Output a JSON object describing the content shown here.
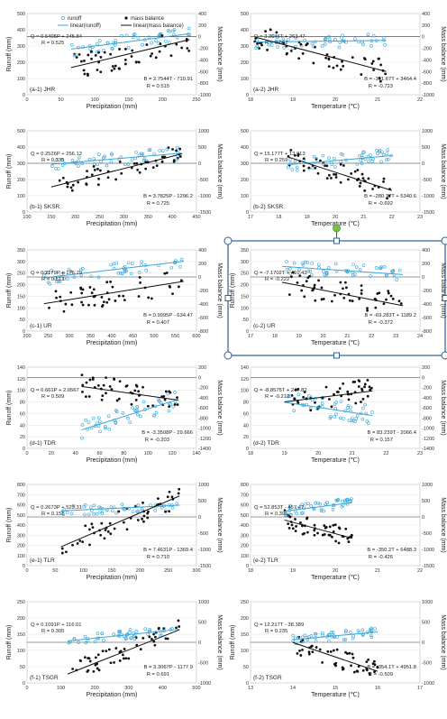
{
  "colors": {
    "runoff": "#3aa6d8",
    "mass": "#111111",
    "selection": "#2f5f8f",
    "handle_rotate": "#7ac143"
  },
  "legend": {
    "runoff": "runoff",
    "mass": "mass balance",
    "lin_runoff": "linear(runoff)",
    "lin_mass": "linear(mass balance)"
  },
  "chart_data": [
    {
      "type": "scatter",
      "id": "a1",
      "panel_label": "(a-1) JHR",
      "xlabel": "Precipitation (mm)",
      "ylabel": "Runoff (mm)",
      "y2label": "Mass balance (mm)",
      "xlim": [
        0,
        250
      ],
      "xticks": [
        0,
        50,
        100,
        150,
        200,
        250
      ],
      "ylim": [
        0,
        500
      ],
      "yticks": [
        0,
        100,
        200,
        300,
        400,
        500
      ],
      "y2lim": [
        -1000,
        400
      ],
      "y2ticks": [
        -1000,
        -800,
        -600,
        -400,
        -200,
        0,
        200,
        400
      ],
      "eq_runoff": "Q = 0.5405P + 245.84",
      "r_runoff": "R = 0.525",
      "eq_mass": "B = 2.7544T - 710.91",
      "r_mass": "R = 0.515",
      "fit_runoff": [
        0.5405,
        245.84
      ],
      "fit_mass": [
        2.7544,
        -710.91
      ],
      "fit_x": [
        65,
        240
      ],
      "runoff_mean": 335,
      "runoff_spread": 45,
      "mass_mean": -250,
      "mass_spread": 220,
      "n": 50,
      "grid": true,
      "legend": "top"
    },
    {
      "type": "scatter",
      "id": "a2",
      "panel_label": "(a-2) JHR",
      "xlabel": "Temperature (℃)",
      "ylabel": "",
      "y2label": "Mass balance (mm)",
      "xlim": [
        18,
        22
      ],
      "xticks": [
        18,
        19,
        20,
        21,
        22
      ],
      "ylim": [
        0,
        500
      ],
      "yticks": [
        0,
        100,
        200,
        300,
        400,
        500
      ],
      "y2lim": [
        -1000,
        400
      ],
      "y2ticks": [
        -1000,
        -800,
        -600,
        -400,
        -200,
        0,
        200,
        400
      ],
      "eq_runoff": "Q = 3.3646T + 263.47",
      "r_runoff": "R = 0.062",
      "eq_mass": "B = -191.67T + 3464.4",
      "r_mass": "R = -0.723",
      "fit_runoff": [
        3.3646,
        263.47
      ],
      "fit_mass": [
        -191.67,
        3464.4
      ],
      "fit_x": [
        18.1,
        21.2
      ],
      "runoff_mean": 330,
      "runoff_spread": 40,
      "mass_mean": -300,
      "mass_spread": 200,
      "n": 50,
      "grid": true
    },
    {
      "type": "scatter",
      "id": "b1",
      "panel_label": "(b-1) SKSR",
      "xlabel": "Precipitation (mm)",
      "ylabel": "Runoff (mm)",
      "y2label": "Mass balance (mm)",
      "xlim": [
        100,
        450
      ],
      "xticks": [
        100,
        150,
        200,
        250,
        300,
        350,
        400,
        450
      ],
      "ylim": [
        0,
        500
      ],
      "yticks": [
        0,
        100,
        200,
        300,
        400,
        500
      ],
      "y2lim": [
        -1500,
        1000
      ],
      "y2ticks": [
        -1500,
        -1000,
        -500,
        0,
        500,
        1000
      ],
      "eq_runoff": "Q = 0.2526P + 256.12",
      "r_runoff": "R = 0.335",
      "eq_mass": "B = 3.7825P - 1296.2",
      "r_mass": "R = 0.725",
      "fit_runoff": [
        0.2526,
        256.12
      ],
      "fit_mass": [
        3.7825,
        -1296.2
      ],
      "fit_x": [
        150,
        420
      ],
      "runoff_mean": 320,
      "runoff_spread": 40,
      "mass_mean": -250,
      "mass_spread": 300,
      "n": 50,
      "grid": true
    },
    {
      "type": "scatter",
      "id": "b2",
      "panel_label": "(b-2) SKSR",
      "xlabel": "Temperature (℃)",
      "ylabel": "",
      "y2label": "Mass balance (mm)",
      "xlim": [
        17,
        23
      ],
      "xticks": [
        17,
        18,
        19,
        20,
        21,
        22,
        23
      ],
      "ylim": [
        0,
        500
      ],
      "yticks": [
        0,
        100,
        200,
        300,
        400,
        500
      ],
      "y2lim": [
        -1500,
        1000
      ],
      "y2ticks": [
        -1500,
        -1000,
        -500,
        0,
        500,
        1000
      ],
      "eq_runoff": "Q = 15.177T + 13.013",
      "r_runoff": "R = 0.259",
      "eq_mass": "B = -280.77T + 5340.6",
      "r_mass": "R = -0.692",
      "fit_runoff": [
        15.177,
        13.013
      ],
      "fit_mass": [
        -280.77,
        5340.6
      ],
      "fit_x": [
        18.3,
        22
      ],
      "runoff_mean": 320,
      "runoff_spread": 40,
      "mass_mean": -300,
      "mass_spread": 300,
      "n": 50,
      "grid": true
    },
    {
      "type": "scatter",
      "id": "c1",
      "panel_label": "(c-1) UR",
      "xlabel": "Precipitation (mm)",
      "ylabel": "Runoff (mm)",
      "y2label": "Mass balance (mm)",
      "xlim": [
        200,
        600
      ],
      "xticks": [
        200,
        250,
        300,
        350,
        400,
        450,
        500,
        550,
        600
      ],
      "ylim": [
        0,
        350
      ],
      "yticks": [
        0,
        50,
        100,
        150,
        200,
        250,
        300,
        350
      ],
      "y2lim": [
        -800,
        400
      ],
      "y2ticks": [
        -800,
        -600,
        -400,
        -200,
        0,
        200,
        400
      ],
      "eq_runoff": "Q = 0.2179P + 176.79",
      "r_runoff": "R = 0.513",
      "eq_mass": "B = 0.9995P - 634.47",
      "r_mass": "R = 0.407",
      "fit_runoff": [
        0.2179,
        176.79
      ],
      "fit_mass": [
        0.9995,
        -634.47
      ],
      "fit_x": [
        240,
        570
      ],
      "runoff_mean": 255,
      "runoff_spread": 30,
      "mass_mean": -250,
      "mass_spread": 180,
      "n": 50,
      "grid": true
    },
    {
      "type": "scatter",
      "id": "c2",
      "panel_label": "(c-2) UR",
      "xlabel": "Temperature (℃)",
      "ylabel": "Runoff (mm)",
      "y2label": "Mass balance (mm)",
      "xlim": [
        17,
        24
      ],
      "xticks": [
        17,
        18,
        19,
        20,
        21,
        22,
        23,
        24
      ],
      "ylim": [
        0,
        350
      ],
      "yticks": [
        0,
        50,
        100,
        150,
        200,
        250,
        300,
        350
      ],
      "y2lim": [
        -800,
        400
      ],
      "y2ticks": [
        -800,
        -600,
        -400,
        -200,
        0,
        200,
        400
      ],
      "eq_runoff": "Q = -7.1702T + 410.43",
      "r_runoff": "R = -0.222",
      "eq_mass": "B = -69.283T + 1189.2",
      "r_mass": "R = -0.372",
      "fit_runoff": [
        -7.1702,
        410.43
      ],
      "fit_mass": [
        -69.283,
        1189.2
      ],
      "fit_x": [
        18.3,
        23.3
      ],
      "runoff_mean": 255,
      "runoff_spread": 30,
      "mass_mean": -250,
      "mass_spread": 180,
      "n": 50,
      "grid": true,
      "selected": true
    },
    {
      "type": "scatter",
      "id": "d1",
      "panel_label": "(d-1) TDR",
      "xlabel": "Precipitation (mm)",
      "ylabel": "Runoff (mm)",
      "y2label": "Mass balance (mm)",
      "xlim": [
        0,
        140
      ],
      "xticks": [
        0,
        20,
        40,
        60,
        80,
        100,
        120,
        140
      ],
      "ylim": [
        0,
        140
      ],
      "yticks": [
        0,
        20,
        40,
        60,
        80,
        100,
        120,
        140
      ],
      "y2lim": [
        -1400,
        200
      ],
      "y2ticks": [
        -1400,
        -1200,
        -1000,
        -800,
        -600,
        -400,
        -200,
        0,
        200
      ],
      "eq_runoff": "Q = 0.661P + 2.0567",
      "r_runoff": "R = 0.509",
      "eq_mass": "B = -3.3508P - 29.666",
      "r_mass": "R = -0.203",
      "fit_runoff": [
        0.661,
        2.0567
      ],
      "fit_mass": [
        -3.3508,
        -29.666
      ],
      "fit_x": [
        45,
        125
      ],
      "runoff_mean": 60,
      "runoff_spread": 15,
      "mass_mean": -300,
      "mass_spread": 250,
      "n": 50,
      "grid": true
    },
    {
      "type": "scatter",
      "id": "d2",
      "panel_label": "(d-2) TDR",
      "xlabel": "Temperature (℃)",
      "ylabel": "",
      "y2label": "Mass balance (mm)",
      "xlim": [
        18,
        23
      ],
      "xticks": [
        18,
        19,
        20,
        21,
        22,
        23
      ],
      "ylim": [
        0,
        140
      ],
      "yticks": [
        0,
        20,
        40,
        60,
        80,
        100,
        120,
        140
      ],
      "y2lim": [
        -1400,
        200
      ],
      "y2ticks": [
        -1400,
        -1200,
        -1000,
        -800,
        -600,
        -400,
        -200,
        0,
        200
      ],
      "eq_runoff": "Q = -8.8575T + 247.82",
      "r_runoff": "R = -0.212",
      "eq_mass": "B = 83.239T - 2066.4",
      "r_mass": "R = 0.157",
      "fit_runoff": [
        -8.8575,
        247.82
      ],
      "fit_mass": [
        83.239,
        -2066.4
      ],
      "fit_x": [
        19,
        21.6
      ],
      "runoff_mean": 65,
      "runoff_spread": 18,
      "mass_mean": -350,
      "mass_spread": 250,
      "n": 50,
      "grid": true
    },
    {
      "type": "scatter",
      "id": "e1",
      "panel_label": "(e-1) TLR",
      "xlabel": "Precipitation (mm)",
      "ylabel": "Runoff (mm)",
      "y2label": "Mass balance (mm)",
      "xlim": [
        0,
        300
      ],
      "xticks": [
        0,
        50,
        100,
        150,
        200,
        250,
        300
      ],
      "ylim": [
        0,
        800
      ],
      "yticks": [
        0,
        100,
        200,
        300,
        400,
        500,
        600,
        700,
        800
      ],
      "y2lim": [
        -1500,
        1000
      ],
      "y2ticks": [
        -1500,
        -1000,
        -500,
        0,
        500,
        1000
      ],
      "eq_runoff": "Q = 0.2673P + 523.31",
      "r_runoff": "R = 0.151",
      "eq_mass": "B = 7.4631P - 1369.4",
      "r_mass": "R = 0.710",
      "fit_runoff": [
        0.2673,
        523.31
      ],
      "fit_mass": [
        7.4631,
        -1369.4
      ],
      "fit_x": [
        60,
        270
      ],
      "runoff_mean": 560,
      "runoff_spread": 50,
      "mass_mean": -300,
      "mass_spread": 350,
      "n": 50,
      "grid": true
    },
    {
      "type": "scatter",
      "id": "e2",
      "panel_label": "(e-2) TLR",
      "xlabel": "Temperature (℃)",
      "ylabel": "",
      "y2label": "Mass balance (mm)",
      "xlim": [
        18,
        22
      ],
      "xticks": [
        18,
        19,
        20,
        21,
        22
      ],
      "ylim": [
        0,
        800
      ],
      "yticks": [
        0,
        100,
        200,
        300,
        400,
        500,
        600,
        700,
        800
      ],
      "y2lim": [
        -1500,
        1000
      ],
      "y2ticks": [
        -1500,
        -1000,
        -500,
        0,
        500,
        1000
      ],
      "eq_runoff": "Q = 52.853T - 457.47",
      "r_runoff": "R = 0.395",
      "eq_mass": "B = -350.2T + 6488.3",
      "r_mass": "R = -0.426",
      "fit_runoff": [
        52.853,
        -457.47
      ],
      "fit_mass": [
        -350.2,
        6488.3
      ],
      "fit_x": [
        18.8,
        20.4
      ],
      "runoff_mean": 560,
      "runoff_spread": 50,
      "mass_mean": -300,
      "mass_spread": 300,
      "n": 50,
      "grid": true
    },
    {
      "type": "scatter",
      "id": "f1",
      "panel_label": "(f-1) TSGR",
      "xlabel": "Precipitation (mm)",
      "ylabel": "Runoff (mm)",
      "y2label": "Mass balance (mm)",
      "xlim": [
        0,
        500
      ],
      "xticks": [
        0,
        100,
        200,
        300,
        400,
        500
      ],
      "ylim": [
        0,
        250
      ],
      "yticks": [
        0,
        50,
        100,
        150,
        200,
        250
      ],
      "y2lim": [
        -1000,
        1000
      ],
      "y2ticks": [
        -1000,
        -500,
        0,
        500,
        1000
      ],
      "eq_runoff": "Q = 0.1091P + 116.01",
      "r_runoff": "R = 0.305",
      "eq_mass": "B = 3.3067P - 1177.9",
      "r_mass": "R = 0.691",
      "fit_runoff": [
        0.1091,
        116.01
      ],
      "fit_mass": [
        3.3067,
        -1177.9
      ],
      "fit_x": [
        120,
        450
      ],
      "runoff_mean": 145,
      "runoff_spread": 15,
      "mass_mean": -250,
      "mass_spread": 250,
      "n": 50,
      "grid": true
    },
    {
      "type": "scatter",
      "id": "f2",
      "panel_label": "(f-2) TSGR",
      "xlabel": "Temperature (℃)",
      "ylabel": "Runoff (mm)",
      "y2label": "Mass balance (mm)",
      "xlim": [
        13,
        17
      ],
      "xticks": [
        13,
        14,
        15,
        16,
        17
      ],
      "ylim": [
        0,
        250
      ],
      "yticks": [
        0,
        50,
        100,
        150,
        200,
        250
      ],
      "y2lim": [
        -1000,
        1000
      ],
      "y2ticks": [
        -1000,
        -500,
        0,
        500,
        1000
      ],
      "eq_runoff": "Q = 12.217T - 38.389",
      "r_runoff": "R = 0.235",
      "eq_mass": "B = -354.1T + 4951.8",
      "r_mass": "R = -0.509",
      "fit_runoff": [
        12.217,
        -38.389
      ],
      "fit_mass": [
        -354.1,
        4951.8
      ],
      "fit_x": [
        14,
        16
      ],
      "runoff_mean": 145,
      "runoff_spread": 15,
      "mass_mean": -250,
      "mass_spread": 250,
      "n": 50,
      "grid": true
    }
  ]
}
